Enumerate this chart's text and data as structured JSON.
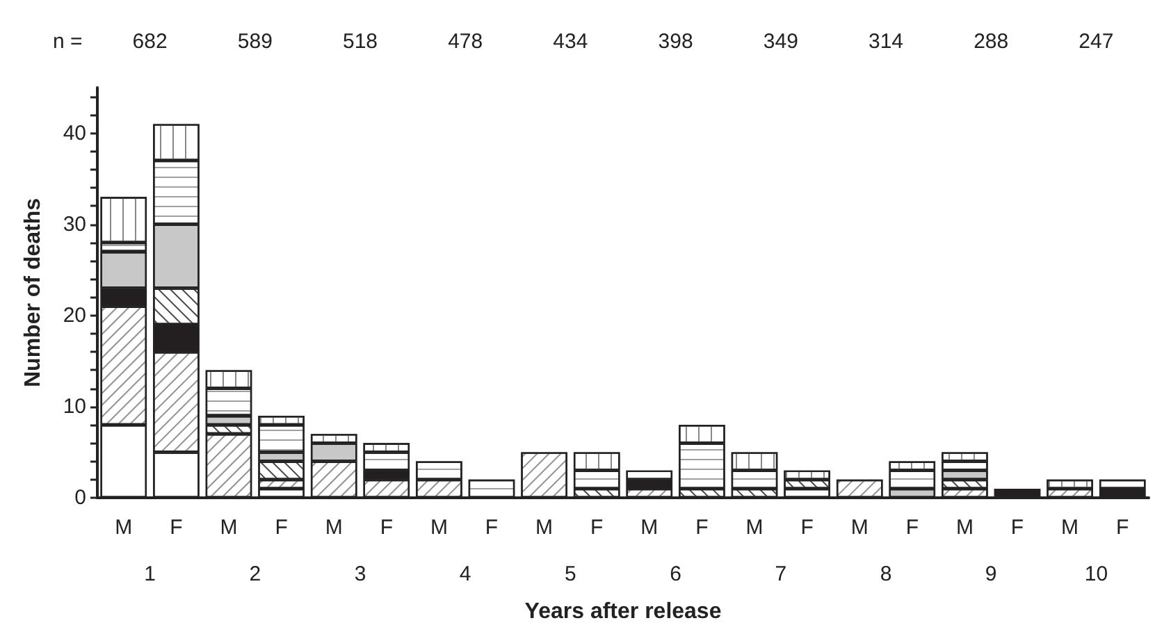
{
  "chart_data": {
    "type": "bar",
    "stacked": true,
    "xlabel": "Years after release",
    "ylabel": "Number of deaths",
    "categories": [
      "M",
      "F",
      "M",
      "F",
      "M",
      "F",
      "M",
      "F",
      "M",
      "F",
      "M",
      "F",
      "M",
      "F",
      "M",
      "F",
      "M",
      "F",
      "M",
      "F"
    ],
    "series": [
      {
        "color": "#ffffff",
        "values": [
          8,
          5,
          null,
          1,
          null,
          null,
          null,
          null,
          null,
          null,
          null,
          null,
          null,
          1,
          null,
          null,
          null,
          null,
          null,
          null
        ]
      },
      {
        "color": "#ffffff",
        "values": [
          13,
          11,
          7,
          1,
          4,
          2,
          2,
          null,
          5,
          null,
          1,
          null,
          null,
          null,
          2,
          null,
          1,
          null,
          1,
          null
        ]
      },
      {
        "color": "#231f20",
        "values": [
          2,
          3,
          null,
          null,
          null,
          1,
          null,
          null,
          null,
          null,
          1,
          null,
          null,
          null,
          null,
          null,
          null,
          1,
          null,
          1
        ]
      },
      {
        "color": "#ffffff",
        "values": [
          null,
          4,
          1,
          2,
          null,
          null,
          null,
          null,
          null,
          1,
          null,
          1,
          1,
          1,
          null,
          null,
          1,
          null,
          null,
          null
        ]
      },
      {
        "color": "#c8c8c8",
        "values": [
          4,
          7,
          1,
          1,
          2,
          null,
          null,
          null,
          null,
          null,
          null,
          null,
          null,
          null,
          null,
          1,
          1,
          null,
          null,
          null
        ]
      },
      {
        "color": "#ffffff",
        "values": [
          1,
          7,
          3,
          3,
          null,
          2,
          2,
          2,
          null,
          2,
          1,
          5,
          2,
          null,
          null,
          2,
          1,
          null,
          null,
          1
        ]
      },
      {
        "color": "#ffffff",
        "values": [
          5,
          4,
          2,
          1,
          1,
          1,
          null,
          null,
          null,
          2,
          null,
          2,
          2,
          1,
          null,
          1,
          1,
          null,
          1,
          null
        ]
      }
    ],
    "ylim": [
      0,
      45
    ],
    "yticks": [
      0,
      {
        "value": 2,
        "label": null
      },
      {
        "value": 4,
        "label": null
      },
      {
        "value": 6,
        "label": null
      },
      {
        "value": 8,
        "label": null
      },
      10,
      {
        "value": 12,
        "label": null
      },
      {
        "value": 14,
        "label": null
      },
      {
        "value": 16,
        "label": null
      },
      {
        "value": 18,
        "label": null
      },
      20,
      {
        "value": 22,
        "label": null
      },
      {
        "value": 24,
        "label": null
      },
      {
        "value": 26,
        "label": null
      },
      {
        "value": 28,
        "label": null
      },
      30,
      {
        "value": 32,
        "label": null
      },
      {
        "value": 34,
        "label": null
      },
      {
        "value": 36,
        "label": null
      },
      {
        "value": 38,
        "label": null
      },
      40,
      {
        "value": 42,
        "label": null
      },
      {
        "value": 44,
        "label": null
      }
    ],
    "grid": false,
    "annotations": [
      "n =",
      "682",
      "589",
      "518",
      "478",
      "434",
      "398",
      "349",
      "314",
      "288",
      "247",
      "1",
      "2",
      "3",
      "4",
      "5",
      "6",
      "7",
      "8",
      "9",
      "10"
    ]
  }
}
